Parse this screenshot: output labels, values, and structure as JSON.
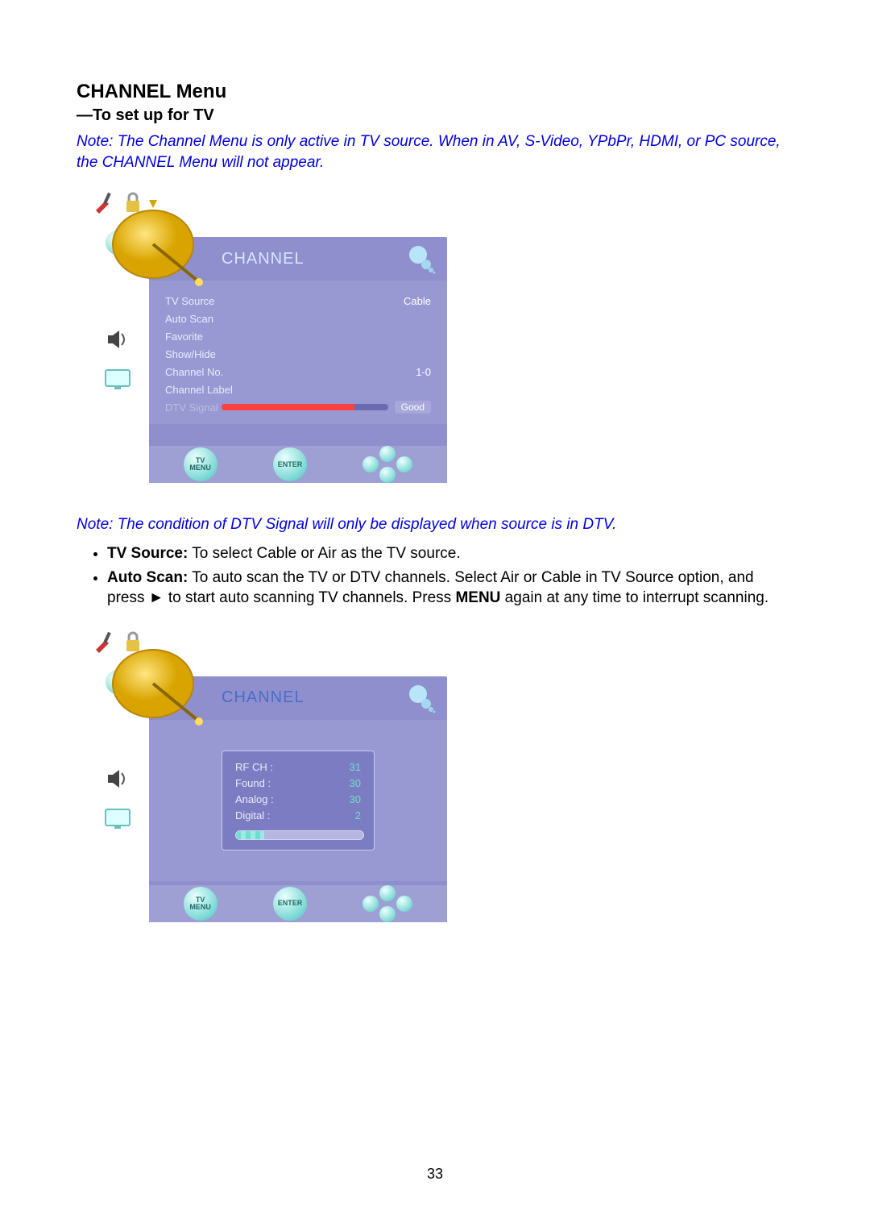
{
  "page": {
    "title": "CHANNEL Menu",
    "subtitle": "—To set up for TV",
    "note1": "Note: The Channel Menu is only active in TV source. When in AV, S-Video, YPbPr, HDMI, or PC source, the CHANNEL Menu will not appear.",
    "note2": "Note: The condition of DTV Signal will only be displayed when source is in DTV.",
    "bullet1_bold": "TV Source:",
    "bullet1_rest": " To select Cable or Air as the TV source.",
    "bullet2_bold": "Auto Scan:",
    "bullet2_rest": " To auto scan the TV or DTV channels. Select Air or Cable in TV Source option, and press ► to start auto scanning TV channels. Press ",
    "bullet2_bold2": "MENU",
    "bullet2_rest2": " again at any time to interrupt scanning.",
    "page_number": "33"
  },
  "osd1": {
    "title": "CHANNEL",
    "items": [
      {
        "label": "TV Source",
        "value": "Cable"
      },
      {
        "label": "Auto Scan",
        "value": ""
      },
      {
        "label": "Favorite",
        "value": ""
      },
      {
        "label": "Show/Hide",
        "value": ""
      },
      {
        "label": "Channel No.",
        "value": "1-0"
      },
      {
        "label": "Channel Label",
        "value": ""
      }
    ],
    "dtv_label": "DTV Signal",
    "dtv_value_tag": "Good",
    "signal_fill_pct": 80,
    "footer": {
      "menu": "TV\nMENU",
      "enter": "ENTER"
    },
    "colors": {
      "panel_bg": "#8f8fce",
      "body_bg": "#9898d2",
      "footer_bg": "#9ea0d4",
      "title_color": "#d6e6ff",
      "text_color": "#e8edff",
      "signal_fill": "#ff4040",
      "button_grad_light": "#e9fffd",
      "button_grad_mid": "#79d7d3",
      "button_grad_dark": "#4fb9b4"
    },
    "title_fontsize": 20,
    "body_fontsize": 13
  },
  "osd2": {
    "title": "CHANNEL",
    "scan": {
      "rows": [
        {
          "label": "RF CH  :",
          "value": "31"
        },
        {
          "label": "Found  :",
          "value": "30"
        },
        {
          "label": "Analog :",
          "value": "30"
        },
        {
          "label": "Digital :",
          "value": "2"
        }
      ],
      "progress_pct": 22
    },
    "footer": {
      "menu": "TV\nMENU",
      "enter": "ENTER"
    },
    "colors": {
      "scan_bg": "#7c7cc2",
      "scan_border": "#c9c9ee",
      "scan_value_color": "#6be0d2",
      "progress_track": "#b6b6e0",
      "progress_fill1": "#6be0d2",
      "progress_fill2": "#9fe9e1"
    }
  },
  "typography": {
    "heading_fontsize": 24,
    "subheading_fontsize": 20,
    "body_fontsize": 19,
    "note_color": "#0000e0"
  },
  "side_icons": [
    "tools-icon",
    "lock-icon",
    "clock-icon",
    "dish-icon",
    "speaker-icon",
    "monitor-icon"
  ]
}
